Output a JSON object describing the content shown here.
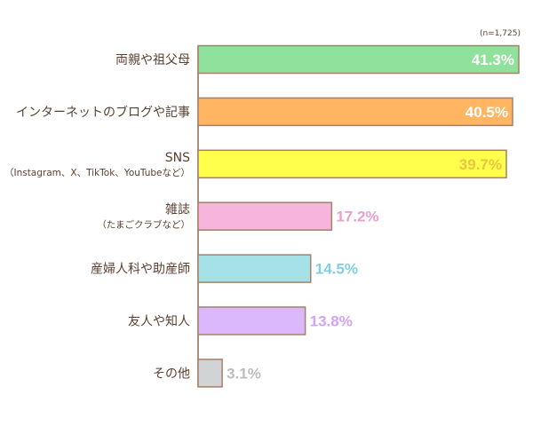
{
  "chart_data": {
    "type": "bar",
    "orientation": "horizontal",
    "note": "(n=1,725)",
    "categories": [
      {
        "label": "両親や祖父母",
        "sub": ""
      },
      {
        "label": "インターネットのブログや記事",
        "sub": ""
      },
      {
        "label": "SNS",
        "sub": "（Instagram、X、TikTok、YouTubeなど）"
      },
      {
        "label": "雑誌",
        "sub": "（たまごクラブなど）"
      },
      {
        "label": "産婦人科や助産師",
        "sub": ""
      },
      {
        "label": "友人や知人",
        "sub": ""
      },
      {
        "label": "その他",
        "sub": ""
      }
    ],
    "values": [
      41.3,
      40.5,
      39.7,
      17.2,
      14.5,
      13.8,
      3.1
    ],
    "value_labels": [
      "41.3%",
      "40.5%",
      "39.7%",
      "17.2%",
      "14.5%",
      "13.8%",
      "3.1%"
    ],
    "bar_colors": [
      "#90e19b",
      "#ffb561",
      "#ffff4c",
      "#f7b5de",
      "#a7e1e8",
      "#dbb8fb",
      "#d1d3d4"
    ],
    "label_colors": [
      "#ffffff",
      "#ffffff",
      "#e7c63f",
      "#e8a1cf",
      "#7fcfe1",
      "#d1a3f0",
      "#bdbdbd"
    ],
    "label_inside": [
      true,
      true,
      true,
      false,
      false,
      false,
      false
    ],
    "border_color": "#a5806a",
    "xlim": [
      0,
      41.3
    ],
    "grid": false,
    "legend": "none"
  }
}
